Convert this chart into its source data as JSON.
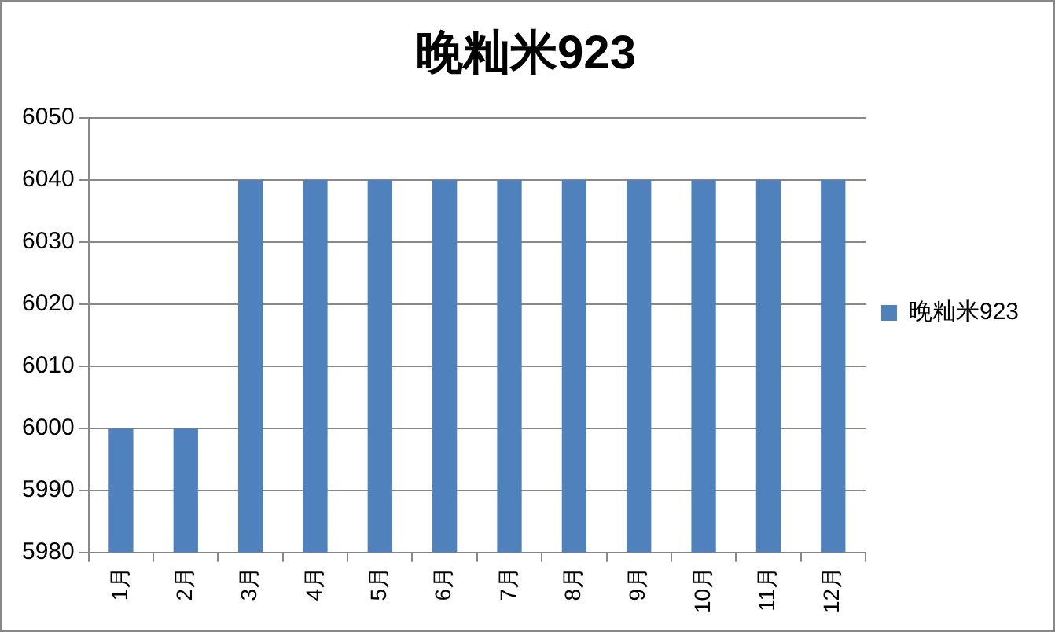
{
  "chart_data": {
    "type": "bar",
    "title": "晚籼米923",
    "categories": [
      "1月",
      "2月",
      "3月",
      "4月",
      "5月",
      "6月",
      "7月",
      "8月",
      "9月",
      "10月",
      "11月",
      "12月"
    ],
    "series": [
      {
        "name": "晚籼米923",
        "color": "#4f81bd",
        "values": [
          6000,
          6000,
          6040,
          6040,
          6040,
          6040,
          6040,
          6040,
          6040,
          6040,
          6040,
          6040
        ]
      }
    ],
    "ylim": [
      5980,
      6050
    ],
    "yticks": [
      5980,
      5990,
      6000,
      6010,
      6020,
      6030,
      6040,
      6050
    ],
    "grid": "y",
    "legend": "right"
  }
}
